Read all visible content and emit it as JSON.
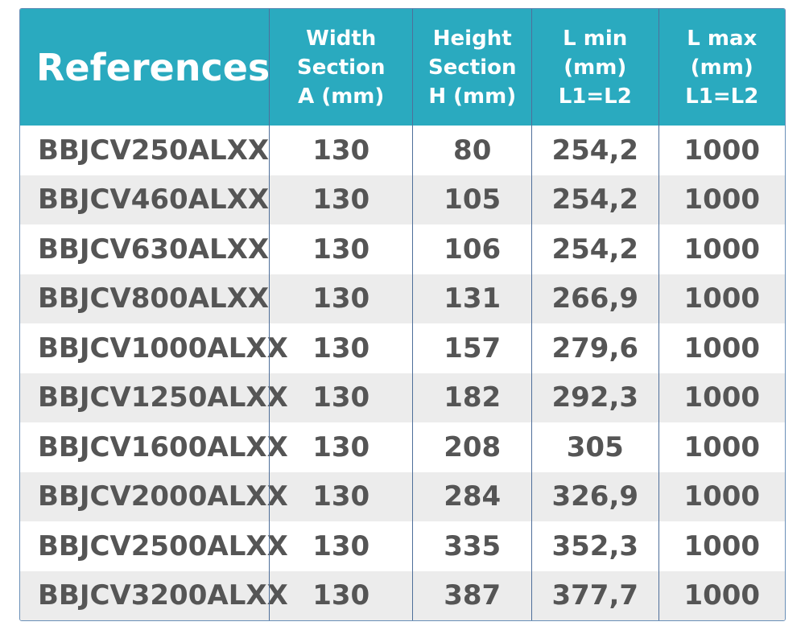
{
  "table": {
    "header": [
      [
        "References"
      ],
      [
        "Width",
        "Section",
        "A (mm)"
      ],
      [
        "Height",
        "Section",
        "H (mm)"
      ],
      [
        "L min",
        "(mm)",
        "L1=L2"
      ],
      [
        "L max",
        "(mm)",
        "L1=L2"
      ]
    ],
    "rows": [
      [
        "BBJCV250ALXX",
        "130",
        "80",
        "254,2",
        "1000"
      ],
      [
        "BBJCV460ALXX",
        "130",
        "105",
        "254,2",
        "1000"
      ],
      [
        "BBJCV630ALXX",
        "130",
        "106",
        "254,2",
        "1000"
      ],
      [
        "BBJCV800ALXX",
        "130",
        "131",
        "266,9",
        "1000"
      ],
      [
        "BBJCV1000ALXX",
        "130",
        "157",
        "279,6",
        "1000"
      ],
      [
        "BBJCV1250ALXX",
        "130",
        "182",
        "292,3",
        "1000"
      ],
      [
        "BBJCV1600ALXX",
        "130",
        "208",
        "305",
        "1000"
      ],
      [
        "BBJCV2000ALXX",
        "130",
        "284",
        "326,9",
        "1000"
      ],
      [
        "BBJCV2500ALXX",
        "130",
        "335",
        "352,3",
        "1000"
      ],
      [
        "BBJCV3200ALXX",
        "130",
        "387",
        "377,7",
        "1000"
      ]
    ]
  }
}
